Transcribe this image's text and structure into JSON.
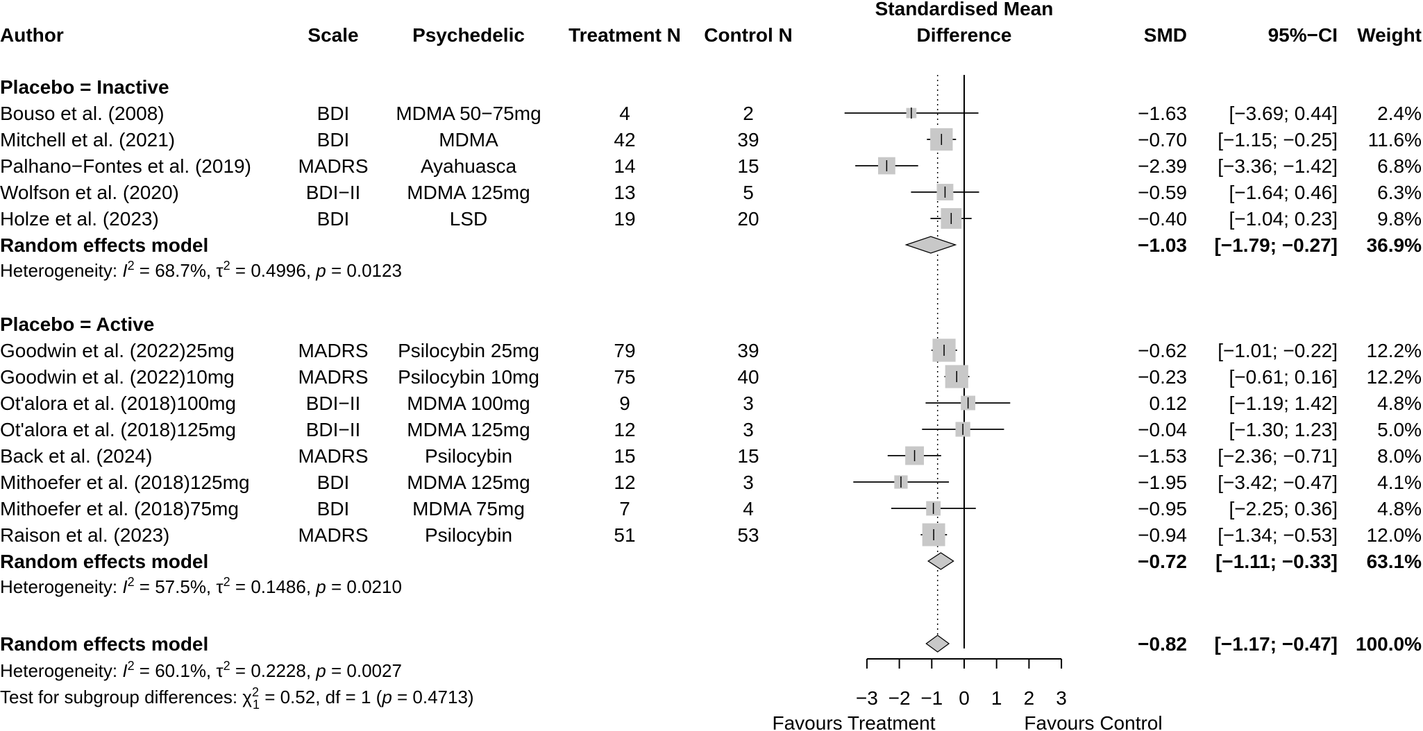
{
  "chart_data": {
    "type": "forest",
    "headers": {
      "author": "Author",
      "scale": "Scale",
      "psychedelic": "Psychedelic",
      "treatment_n": "Treatment N",
      "control_n": "Control N",
      "plot_title_line1": "Standardised Mean",
      "plot_title_line2": "Difference",
      "smd": "SMD",
      "ci": "95%−CI",
      "weight": "Weight"
    },
    "subgroups": [
      {
        "title": "Placebo = Inactive",
        "studies": [
          {
            "author": "Bouso et al. (2008)",
            "scale": "BDI",
            "psychedelic": "MDMA 50−75mg",
            "treatment_n": "4",
            "control_n": "2",
            "smd": -1.63,
            "lower": -3.69,
            "upper": 0.44,
            "weight": 2.4,
            "smd_text": "−1.63",
            "ci_text": "[−3.69;  0.44]",
            "weight_text": "2.4%"
          },
          {
            "author": "Mitchell et al. (2021)",
            "scale": "BDI",
            "psychedelic": "MDMA",
            "treatment_n": "42",
            "control_n": "39",
            "smd": -0.7,
            "lower": -1.15,
            "upper": -0.25,
            "weight": 11.6,
            "smd_text": "−0.70",
            "ci_text": "[−1.15; −0.25]",
            "weight_text": "11.6%"
          },
          {
            "author": "Palhano−Fontes et al. (2019)",
            "scale": "MADRS",
            "psychedelic": "Ayahuasca",
            "treatment_n": "14",
            "control_n": "15",
            "smd": -2.39,
            "lower": -3.36,
            "upper": -1.42,
            "weight": 6.8,
            "smd_text": "−2.39",
            "ci_text": "[−3.36; −1.42]",
            "weight_text": "6.8%"
          },
          {
            "author": "Wolfson et al. (2020)",
            "scale": "BDI−II",
            "psychedelic": "MDMA 125mg",
            "treatment_n": "13",
            "control_n": "5",
            "smd": -0.59,
            "lower": -1.64,
            "upper": 0.46,
            "weight": 6.3,
            "smd_text": "−0.59",
            "ci_text": "[−1.64;  0.46]",
            "weight_text": "6.3%"
          },
          {
            "author": "Holze et al. (2023)",
            "scale": "BDI",
            "psychedelic": "LSD",
            "treatment_n": "19",
            "control_n": "20",
            "smd": -0.4,
            "lower": -1.04,
            "upper": 0.23,
            "weight": 9.8,
            "smd_text": "−0.40",
            "ci_text": "[−1.04;  0.23]",
            "weight_text": "9.8%"
          }
        ],
        "model": {
          "label": "Random effects model",
          "smd": -1.03,
          "lower": -1.79,
          "upper": -0.27,
          "smd_text": "−1.03",
          "ci_text": "[−1.79; −0.27]",
          "weight_text": "36.9%"
        },
        "heterogeneity": {
          "prefix": "Heterogeneity: ",
          "i2_symbol": "I",
          "i2_text": " = 68.7%, ",
          "tau_symbol": "τ",
          "tau_text": " = 0.4996, ",
          "p_symbol": "p",
          "p_text": " = 0.0123"
        }
      },
      {
        "title": "Placebo = Active",
        "studies": [
          {
            "author": "Goodwin et al. (2022)25mg",
            "scale": "MADRS",
            "psychedelic": "Psilocybin 25mg",
            "treatment_n": "79",
            "control_n": "39",
            "smd": -0.62,
            "lower": -1.01,
            "upper": -0.22,
            "weight": 12.2,
            "smd_text": "−0.62",
            "ci_text": "[−1.01; −0.22]",
            "weight_text": "12.2%"
          },
          {
            "author": "Goodwin et al. (2022)10mg",
            "scale": "MADRS",
            "psychedelic": "Psilocybin 10mg",
            "treatment_n": "75",
            "control_n": "40",
            "smd": -0.23,
            "lower": -0.61,
            "upper": 0.16,
            "weight": 12.2,
            "smd_text": "−0.23",
            "ci_text": "[−0.61;  0.16]",
            "weight_text": "12.2%"
          },
          {
            "author": "Ot'alora et al. (2018)100mg",
            "scale": "BDI−II",
            "psychedelic": "MDMA 100mg",
            "treatment_n": "9",
            "control_n": "3",
            "smd": 0.12,
            "lower": -1.19,
            "upper": 1.42,
            "weight": 4.8,
            "smd_text": "0.12",
            "ci_text": "[−1.19;  1.42]",
            "weight_text": "4.8%"
          },
          {
            "author": "Ot'alora et al. (2018)125mg",
            "scale": "BDI−II",
            "psychedelic": "MDMA 125mg",
            "treatment_n": "12",
            "control_n": "3",
            "smd": -0.04,
            "lower": -1.3,
            "upper": 1.23,
            "weight": 5.0,
            "smd_text": "−0.04",
            "ci_text": "[−1.30;  1.23]",
            "weight_text": "5.0%"
          },
          {
            "author": "Back et al. (2024)",
            "scale": "MADRS",
            "psychedelic": "Psilocybin",
            "treatment_n": "15",
            "control_n": "15",
            "smd": -1.53,
            "lower": -2.36,
            "upper": -0.71,
            "weight": 8.0,
            "smd_text": "−1.53",
            "ci_text": "[−2.36; −0.71]",
            "weight_text": "8.0%"
          },
          {
            "author": "Mithoefer et al. (2018)125mg",
            "scale": "BDI",
            "psychedelic": "MDMA 125mg",
            "treatment_n": "12",
            "control_n": "3",
            "smd": -1.95,
            "lower": -3.42,
            "upper": -0.47,
            "weight": 4.1,
            "smd_text": "−1.95",
            "ci_text": "[−3.42; −0.47]",
            "weight_text": "4.1%"
          },
          {
            "author": "Mithoefer et al. (2018)75mg",
            "scale": "BDI",
            "psychedelic": "MDMA 75mg",
            "treatment_n": "7",
            "control_n": "4",
            "smd": -0.95,
            "lower": -2.25,
            "upper": 0.36,
            "weight": 4.8,
            "smd_text": "−0.95",
            "ci_text": "[−2.25;  0.36]",
            "weight_text": "4.8%"
          },
          {
            "author": "Raison et al. (2023)",
            "scale": "MADRS",
            "psychedelic": "Psilocybin",
            "treatment_n": "51",
            "control_n": "53",
            "smd": -0.94,
            "lower": -1.34,
            "upper": -0.53,
            "weight": 12.0,
            "smd_text": "−0.94",
            "ci_text": "[−1.34; −0.53]",
            "weight_text": "12.0%"
          }
        ],
        "model": {
          "label": "Random effects model",
          "smd": -0.72,
          "lower": -1.11,
          "upper": -0.33,
          "smd_text": "−0.72",
          "ci_text": "[−1.11; −0.33]",
          "weight_text": "63.1%"
        },
        "heterogeneity": {
          "prefix": "Heterogeneity: ",
          "i2_symbol": "I",
          "i2_text": " = 57.5%, ",
          "tau_symbol": "τ",
          "tau_text": " = 0.1486, ",
          "p_symbol": "p",
          "p_text": " = 0.0210"
        }
      }
    ],
    "overall": {
      "model": {
        "label": "Random effects model",
        "smd": -0.82,
        "lower": -1.17,
        "upper": -0.47,
        "smd_text": "−0.82",
        "ci_text": "[−1.17; −0.47]",
        "weight_text": "100.0%"
      },
      "heterogeneity": {
        "prefix": "Heterogeneity: ",
        "i2_symbol": "I",
        "i2_text": " = 60.1%, ",
        "tau_symbol": "τ",
        "tau_text": " = 0.2228, ",
        "p_symbol": "p",
        "p_text": " = 0.0027"
      },
      "subgroup_test": {
        "prefix": "Test for subgroup differences: ",
        "chi_symbol": "χ",
        "chi_sub": "1",
        "chi_text": " = 0.52, df = 1 (",
        "p_symbol": "p",
        "p_text": " = 0.4713)"
      }
    },
    "x_axis": {
      "ticks": [
        -3,
        -2,
        -1,
        0,
        1,
        2,
        3
      ],
      "tick_labels": [
        "−3",
        "−2",
        "−1",
        "0",
        "1",
        "2",
        "3"
      ],
      "xlim": [
        -3,
        3
      ],
      "label_left": "Favours Treatment",
      "label_right": "Favours Control"
    },
    "reference_line": 0,
    "overall_line": -0.82,
    "colors": {
      "box": "#c8c8c8",
      "diamond": "#c8c8c8",
      "line": "#000000"
    }
  }
}
